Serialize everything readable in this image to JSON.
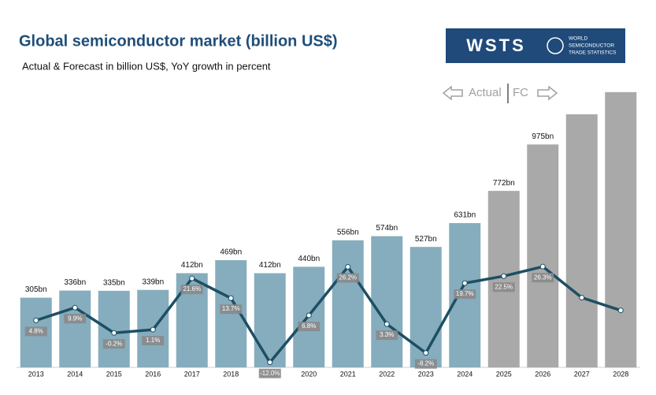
{
  "chart_data": {
    "type": "bar_line",
    "title": "Global semiconductor market (billion US$)",
    "subtitle": "Actual & Forecast in billion US$, YoY growth in percent",
    "logo": {
      "mark": "WSTS",
      "text": [
        "WORLD",
        "SEMICONDUCTOR",
        "TRADE STATISTICS"
      ]
    },
    "legend": {
      "actual": "Actual",
      "forecast": "FC"
    },
    "categories": [
      "2013",
      "2014",
      "2015",
      "2016",
      "2017",
      "2018",
      "2019",
      "2020",
      "2021",
      "2022",
      "2023",
      "2024",
      "2025",
      "2026",
      "2027",
      "2028"
    ],
    "values": [
      305,
      336,
      335,
      339,
      412,
      469,
      412,
      440,
      556,
      574,
      527,
      631,
      772,
      975,
      1107,
      1204
    ],
    "value_labels": [
      "305bn",
      "336bn",
      "335bn",
      "339bn",
      "412bn",
      "469bn",
      "412bn",
      "440bn",
      "556bn",
      "574bn",
      "527bn",
      "631bn",
      "772bn",
      "975bn",
      null,
      null
    ],
    "colors": [
      "#86adbd",
      "#86adbd",
      "#86adbd",
      "#86adbd",
      "#86adbd",
      "#86adbd",
      "#86adbd",
      "#86adbd",
      "#86adbd",
      "#86adbd",
      "#86adbd",
      "#86adbd",
      "#a9a9a9",
      "#a9a9a9",
      "#a9a9a9",
      "#a9a9a9"
    ],
    "ylim": [
      0,
      1400
    ],
    "growth": {
      "color": "#1d4f64",
      "axis": "y2",
      "values": [
        4.8,
        9.9,
        -0.2,
        1.1,
        21.6,
        13.7,
        -12.0,
        6.8,
        26.2,
        3.3,
        -8.2,
        19.7,
        22.5,
        26.3,
        13.9,
        8.8
      ],
      "value_labels": [
        "4.8%",
        "9.9%",
        "-0.2%",
        "1.1%",
        "21.6%",
        "13.7%",
        "-12.0%",
        "6.8%",
        "26.2%",
        "3.3%",
        "-8.2%",
        "19.7%",
        "22.5%",
        "26.3%",
        null,
        null
      ]
    },
    "y2lim": [
      -14,
      114
    ]
  }
}
